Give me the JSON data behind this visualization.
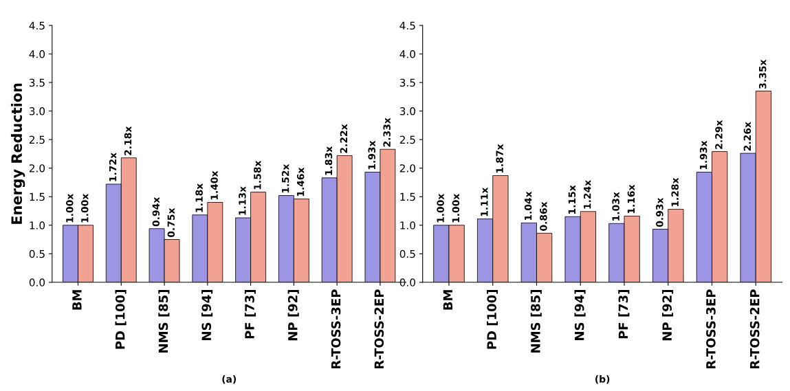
{
  "chart_data": [
    {
      "type": "bar",
      "ylabel": "Energy Reduction",
      "xlabel": "(a)",
      "categories": [
        "BM",
        "PD [100]",
        "NMS [85]",
        "NS [94]",
        "PF [73]",
        "NP [92]",
        "R-TOSS-3EP",
        "R-TOSS-2EP"
      ],
      "ylim": [
        0,
        4.5
      ],
      "yticks": [
        {
          "value": 0,
          "label": "0.0"
        },
        {
          "value": 0.5,
          "label": "0.5"
        },
        {
          "value": 1,
          "label": "1.0"
        },
        {
          "value": 1.5,
          "label": "1.5"
        },
        {
          "value": 2,
          "label": "2.0"
        },
        {
          "value": 2.5,
          "label": "2.5"
        },
        {
          "value": 3,
          "label": "3.0"
        },
        {
          "value": 3.5,
          "label": "3.5"
        },
        {
          "value": 4,
          "label": "4.0"
        },
        {
          "value": 4.5,
          "label": "4.5"
        }
      ],
      "grid": false,
      "series": [
        {
          "color": "#9b95e3",
          "values": [
            1.0,
            1.72,
            0.94,
            1.18,
            1.13,
            1.52,
            1.83,
            1.93
          ],
          "value_labels": [
            "1.00x",
            "1.72x",
            "0.94x",
            "1.18x",
            "1.13x",
            "1.52x",
            "1.83x",
            "1.93x"
          ]
        },
        {
          "color": "#f2a292",
          "values": [
            1.0,
            2.18,
            0.75,
            1.4,
            1.58,
            1.46,
            2.22,
            2.33
          ],
          "value_labels": [
            "1.00x",
            "2.18x",
            "0.75x",
            "1.40x",
            "1.58x",
            "1.46x",
            "2.22x",
            "2.33x"
          ]
        }
      ]
    },
    {
      "type": "bar",
      "xlabel": "(b)",
      "categories": [
        "BM",
        "PD [100]",
        "NMS [85]",
        "NS [94]",
        "PF [73]",
        "NP [92]",
        "R-TOSS-3EP",
        "R-TOSS-2EP"
      ],
      "ylim": [
        0,
        4.5
      ],
      "yticks": [
        {
          "value": 0,
          "label": "0.0"
        },
        {
          "value": 0.5,
          "label": "0.5"
        },
        {
          "value": 1,
          "label": "1.0"
        },
        {
          "value": 1.5,
          "label": "1.5"
        },
        {
          "value": 2,
          "label": "2.0"
        },
        {
          "value": 2.5,
          "label": "2.5"
        },
        {
          "value": 3,
          "label": "3.0"
        },
        {
          "value": 3.5,
          "label": "3.5"
        },
        {
          "value": 4,
          "label": "4.0"
        },
        {
          "value": 4.5,
          "label": "4.5"
        }
      ],
      "grid": false,
      "series": [
        {
          "color": "#9b95e3",
          "values": [
            1.0,
            1.11,
            1.04,
            1.15,
            1.03,
            0.93,
            1.93,
            2.26
          ],
          "value_labels": [
            "1.00x",
            "1.11x",
            "1.04x",
            "1.15x",
            "1.03x",
            "0.93x",
            "1.93x",
            "2.26x"
          ]
        },
        {
          "color": "#f2a292",
          "values": [
            1.0,
            1.87,
            0.86,
            1.24,
            1.16,
            1.28,
            2.29,
            3.35
          ],
          "value_labels": [
            "1.00x",
            "1.87x",
            "0.86x",
            "1.24x",
            "1.16x",
            "1.28x",
            "2.29x",
            "3.35x"
          ]
        }
      ]
    }
  ]
}
